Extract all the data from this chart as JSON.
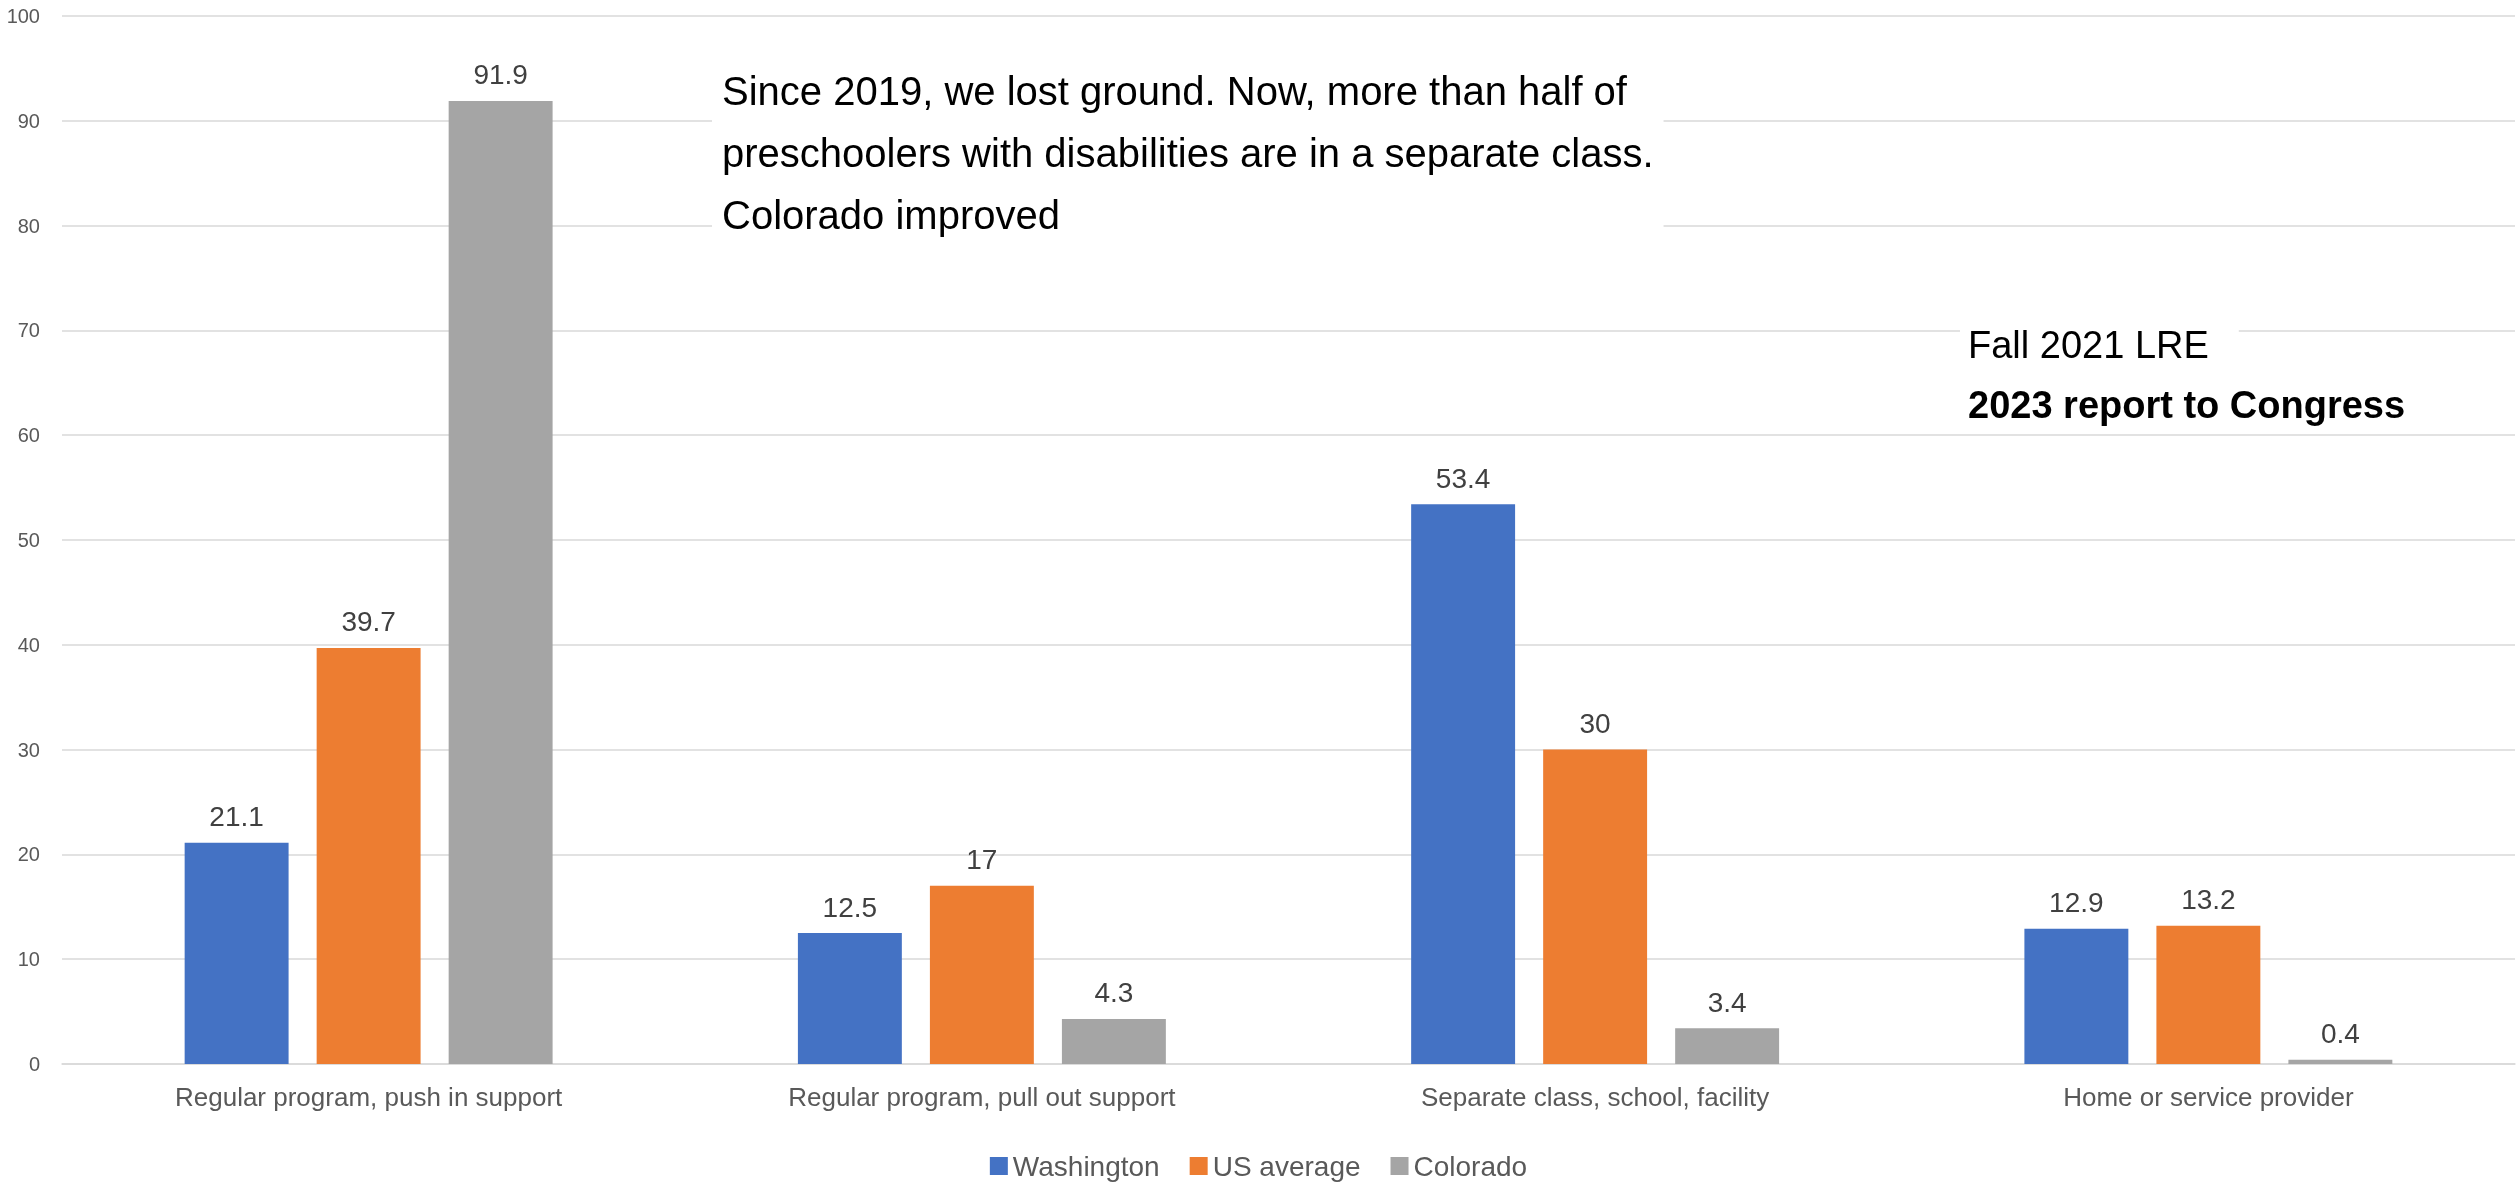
{
  "chart_data": {
    "type": "bar",
    "categories": [
      "Regular program, push in support",
      "Regular program, pull out support",
      "Separate class, school, facility",
      "Home or service provider"
    ],
    "series": [
      {
        "name": "Washington",
        "color": "#4472c4",
        "values": [
          21.1,
          12.5,
          53.4,
          12.9
        ]
      },
      {
        "name": "US average",
        "color": "#ed7d31",
        "values": [
          39.7,
          17,
          30,
          13.2
        ]
      },
      {
        "name": "Colorado",
        "color": "#a5a5a5",
        "values": [
          91.9,
          4.3,
          3.4,
          0.4
        ]
      }
    ],
    "ylim": [
      0,
      100
    ],
    "yticks": [
      0,
      10,
      20,
      30,
      40,
      50,
      60,
      70,
      80,
      90,
      100
    ],
    "grid": "y",
    "legend": "bottom",
    "data_labels": true,
    "annotations": [
      "Since 2019, we lost ground. Now, more than half of\npreschoolers with disabilities are in a separate class.\nColorado improved",
      "Fall 2021 LRE",
      "2023 report to Congress"
    ]
  }
}
